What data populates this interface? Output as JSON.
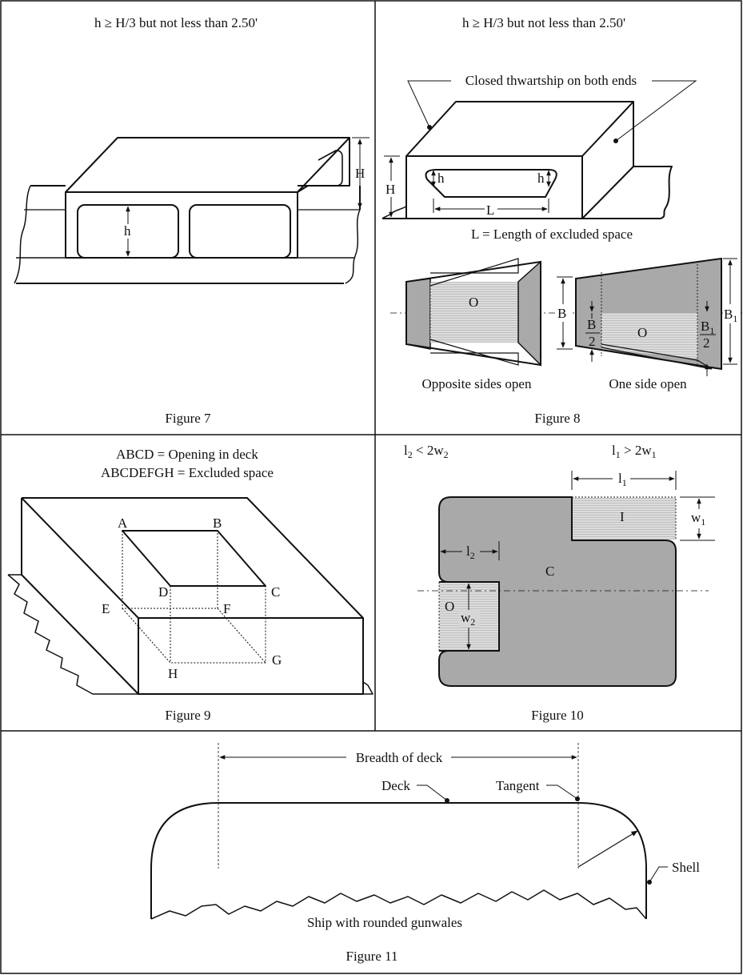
{
  "figure7": {
    "condition": "h ≥ H/3 but not less than 2.50'",
    "label_H": "H",
    "label_h": "h",
    "caption": "Figure 7"
  },
  "figure8": {
    "condition": "h ≥ H/3 but not less than 2.50'",
    "callout": "Closed thwartship on both ends",
    "label_H": "H",
    "label_h_left": "h",
    "label_h_right": "h",
    "label_L": "L",
    "length_note": "L = Length of excluded space",
    "label_O_left": "O",
    "label_O_right": "O",
    "label_B": "B",
    "half_B_num": "B",
    "half_B_den": "2",
    "label_B1": "B",
    "label_B1_sub": "1",
    "half_B1_num": "B",
    "half_B1_num_sub": "1",
    "half_B1_den": "2",
    "opposite_caption": "Opposite sides open",
    "one_side_caption": "One side open",
    "caption": "Figure 8"
  },
  "figure9": {
    "line1": "ABCD = Opening in deck",
    "line2": "ABCDEFGH = Excluded space",
    "points": {
      "A": "A",
      "B": "B",
      "C": "C",
      "D": "D",
      "E": "E",
      "F": "F",
      "G": "G",
      "H": "H"
    },
    "caption": "Figure 9"
  },
  "figure10": {
    "left_cond": {
      "l": "l",
      "l_sub": "2",
      "rel": " < 2w",
      "w_sub": "2"
    },
    "right_cond": {
      "l": "l",
      "l_sub": "1",
      "rel": " > 2w",
      "w_sub": "1"
    },
    "dim_l1": {
      "l": "l",
      "sub": "1"
    },
    "dim_l2": {
      "l": "l",
      "sub": "2"
    },
    "dim_w1": {
      "w": "w",
      "sub": "1"
    },
    "dim_w2": {
      "w": "w",
      "sub": "2"
    },
    "label_I": "I",
    "label_C": "C",
    "label_O": "O",
    "caption": "Figure 10"
  },
  "figure11": {
    "breadth": "Breadth of deck",
    "deck": "Deck",
    "tangent": "Tangent",
    "shell": "Shell",
    "ship": "Ship with rounded gunwales",
    "caption": "Figure 11"
  },
  "colors": {
    "line": "#111111",
    "dark_fill": "#a9a9a9",
    "light_fill": "#d6d6d6"
  }
}
